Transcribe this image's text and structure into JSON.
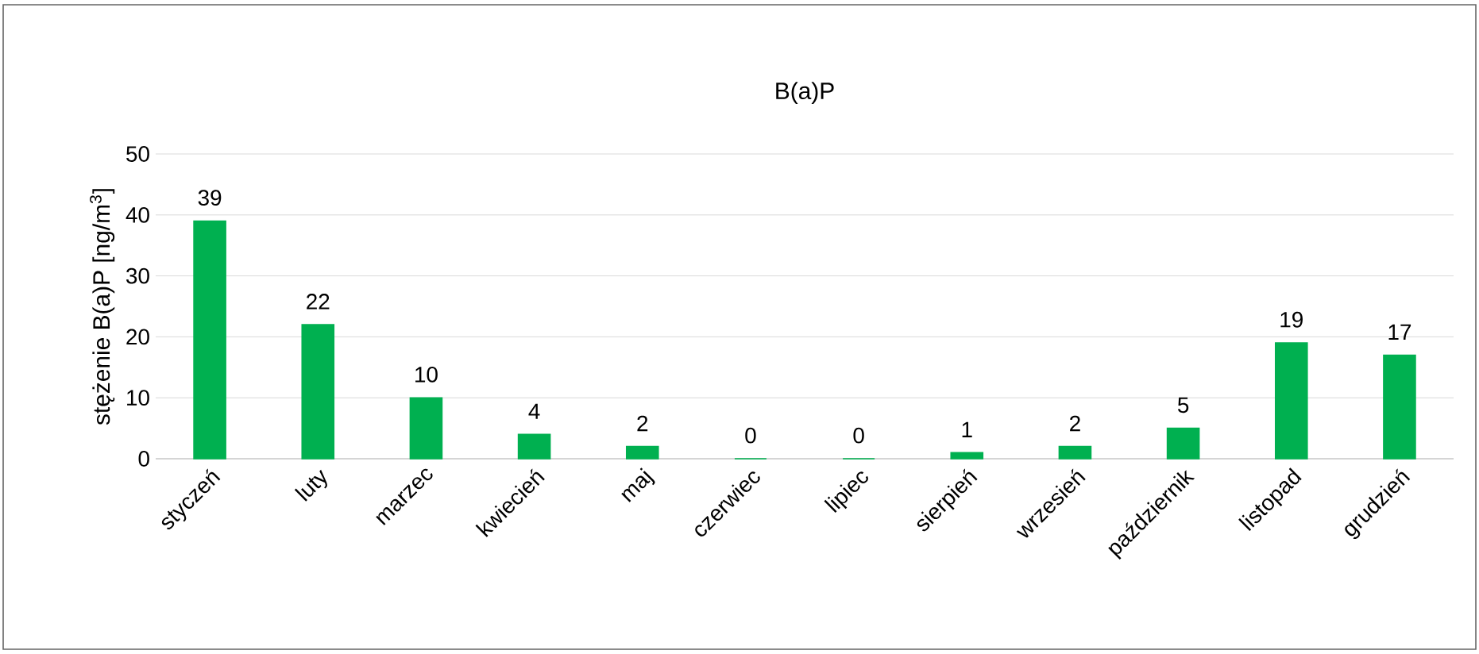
{
  "chart_data": {
    "type": "bar",
    "title": "B(a)P",
    "ylabel": "stężenie B(a)P [ng/m$^{3}$]",
    "categories": [
      "styczeń",
      "luty",
      "marzec",
      "kwiecień",
      "maj",
      "czerwiec",
      "lipiec",
      "sierpień",
      "wrzesień",
      "październik",
      "listopad",
      "grudzień"
    ],
    "values": [
      39,
      22,
      10,
      4,
      2,
      0,
      0,
      1,
      2,
      5,
      19,
      17
    ],
    "color": "#00b050",
    "ylim": [
      0,
      50
    ],
    "yticks": [
      0,
      10,
      20,
      30,
      40,
      50
    ],
    "grid": "y",
    "data_labels": true
  }
}
